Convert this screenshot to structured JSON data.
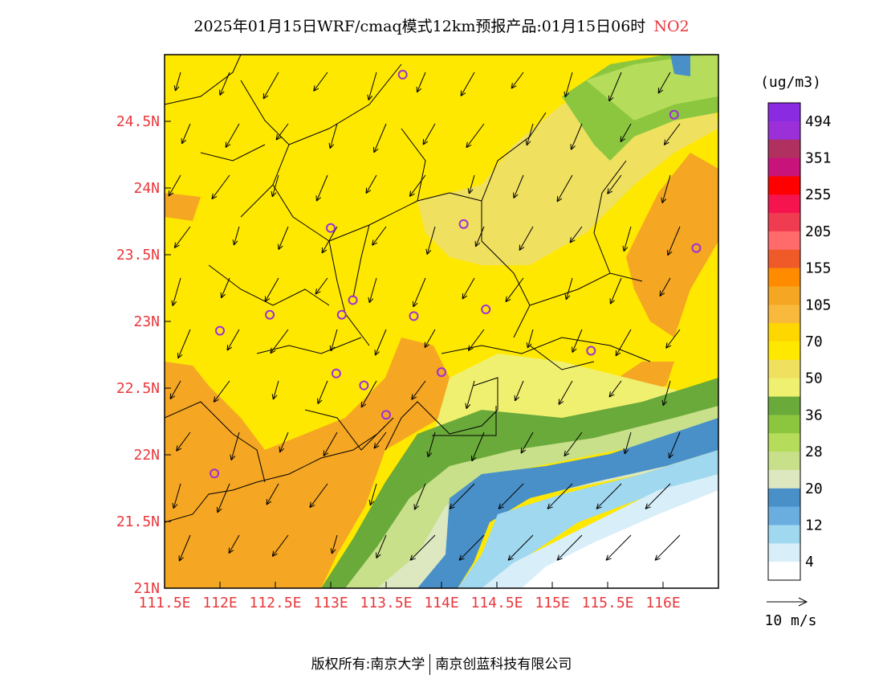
{
  "header": {
    "title": "2025年01月15日WRF/cmaq模式12km预报产品:01月15日06时",
    "pollutant": "NO2"
  },
  "map": {
    "x_ticks": [
      "111.5E",
      "112E",
      "112.5E",
      "113E",
      "113.5E",
      "114E",
      "114.5E",
      "115E",
      "115.5E",
      "116E"
    ],
    "y_ticks": [
      "24.5N",
      "24N",
      "23.5N",
      "23N",
      "22.5N",
      "22N",
      "21.5N",
      "21N"
    ],
    "lon_range": [
      111.5,
      116.5
    ],
    "lat_range": [
      21.0,
      25.0
    ],
    "stations": [
      {
        "lon": 113.65,
        "lat": 24.85
      },
      {
        "lon": 116.1,
        "lat": 24.55
      },
      {
        "lon": 113.0,
        "lat": 23.7
      },
      {
        "lon": 114.2,
        "lat": 23.73
      },
      {
        "lon": 116.3,
        "lat": 23.55
      },
      {
        "lon": 113.2,
        "lat": 23.16
      },
      {
        "lon": 112.45,
        "lat": 23.05
      },
      {
        "lon": 113.1,
        "lat": 23.05
      },
      {
        "lon": 113.75,
        "lat": 23.04
      },
      {
        "lon": 114.4,
        "lat": 23.09
      },
      {
        "lon": 112.0,
        "lat": 22.93
      },
      {
        "lon": 115.35,
        "lat": 22.78
      },
      {
        "lon": 113.05,
        "lat": 22.61
      },
      {
        "lon": 114.0,
        "lat": 22.62
      },
      {
        "lon": 113.3,
        "lat": 22.52
      },
      {
        "lon": 113.5,
        "lat": 22.3
      },
      {
        "lon": 111.95,
        "lat": 21.86
      }
    ],
    "wind_direction": "northeasterly"
  },
  "legend": {
    "unit": "(ug/m3)",
    "levels": [
      {
        "label": "494",
        "color": "#8a2be2"
      },
      {
        "label": "",
        "color": "#9b30d9"
      },
      {
        "label": "351",
        "color": "#b03060"
      },
      {
        "label": "",
        "color": "#c8147a"
      },
      {
        "label": "255",
        "color": "#ff0000"
      },
      {
        "label": "",
        "color": "#f5144e"
      },
      {
        "label": "205",
        "color": "#f03c50"
      },
      {
        "label": "",
        "color": "#ff6a6a"
      },
      {
        "label": "155",
        "color": "#f05a28"
      },
      {
        "label": "",
        "color": "#ff8c00"
      },
      {
        "label": "105",
        "color": "#f5a623"
      },
      {
        "label": "",
        "color": "#f8b93c"
      },
      {
        "label": "70",
        "color": "#ffd700"
      },
      {
        "label": "",
        "color": "#ffe800"
      },
      {
        "label": "50",
        "color": "#f0e060"
      },
      {
        "label": "",
        "color": "#f0f070"
      },
      {
        "label": "36",
        "color": "#6aaa3a"
      },
      {
        "label": "",
        "color": "#8cc63f"
      },
      {
        "label": "28",
        "color": "#b5dc5a"
      },
      {
        "label": "",
        "color": "#c8e08a"
      },
      {
        "label": "20",
        "color": "#dde8c0"
      },
      {
        "label": "",
        "color": "#4a90c8"
      },
      {
        "label": "12",
        "color": "#6aaee0"
      },
      {
        "label": "",
        "color": "#a0d8f0"
      },
      {
        "label": "4",
        "color": "#d8eef8"
      },
      {
        "label": "",
        "color": "#ffffff"
      }
    ]
  },
  "wind_scale": {
    "label": "10 m/s"
  },
  "footer": {
    "left": "版权所有:南京大学",
    "right": "南京创蓝科技有限公司"
  }
}
